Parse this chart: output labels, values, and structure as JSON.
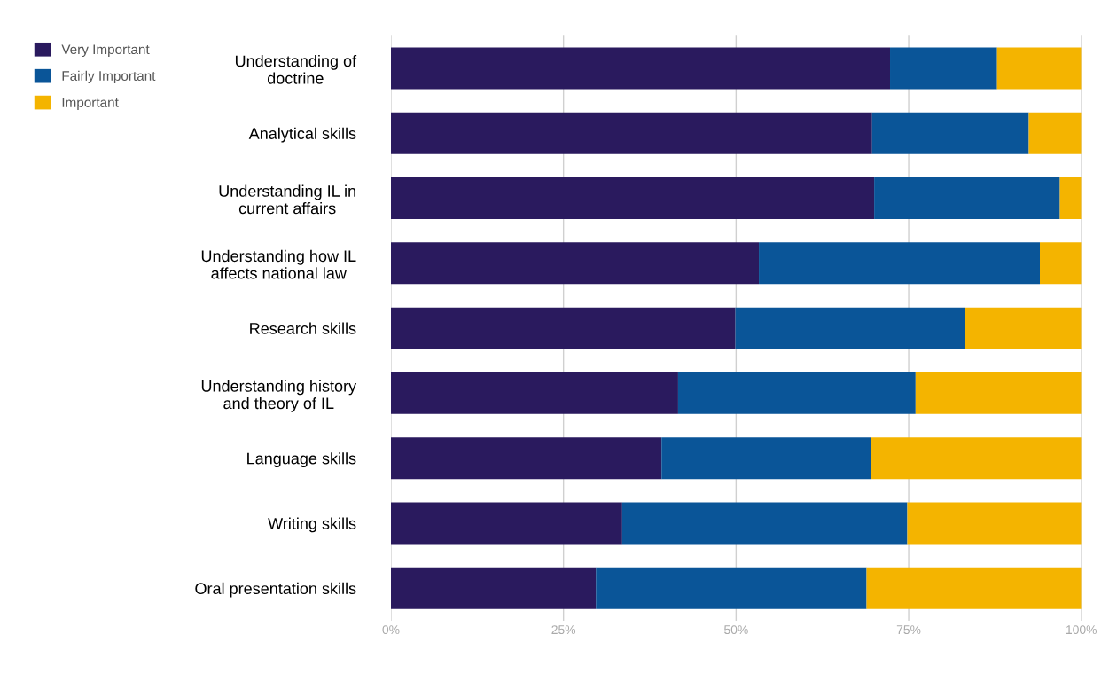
{
  "chart_data": {
    "type": "bar",
    "orientation": "horizontal",
    "stacked": true,
    "categories": [
      "Understanding of\ndoctrine",
      "Analytical skills",
      "Understanding IL in\ncurrent affairs",
      "Understanding how IL\naffects national law",
      "Research skills",
      "Understanding history\nand theory of IL",
      "Language skills",
      "Writing skills",
      "Oral presentation skills"
    ],
    "series": [
      {
        "name": "Very Important",
        "color": "#2a1a5e",
        "values": [
          72.3,
          69.7,
          70.0,
          53.3,
          49.9,
          41.6,
          39.2,
          33.5,
          29.7
        ]
      },
      {
        "name": "Fairly Important",
        "color": "#0a5598",
        "values": [
          15.5,
          22.7,
          26.9,
          40.7,
          33.2,
          34.4,
          30.4,
          41.3,
          39.2
        ]
      },
      {
        "name": "Important",
        "color": "#f4b400",
        "values": [
          12.2,
          7.6,
          3.1,
          6.0,
          16.9,
          24.0,
          30.4,
          25.2,
          31.1
        ]
      }
    ],
    "xlim": [
      0,
      100
    ],
    "xticks": [
      {
        "value": 0,
        "label": "0%"
      },
      {
        "value": 25,
        "label": "25%"
      },
      {
        "value": 50,
        "label": "50%"
      },
      {
        "value": 75,
        "label": "75%"
      },
      {
        "value": 100,
        "label": "100%"
      }
    ],
    "grid": "x",
    "legend": "top left"
  }
}
